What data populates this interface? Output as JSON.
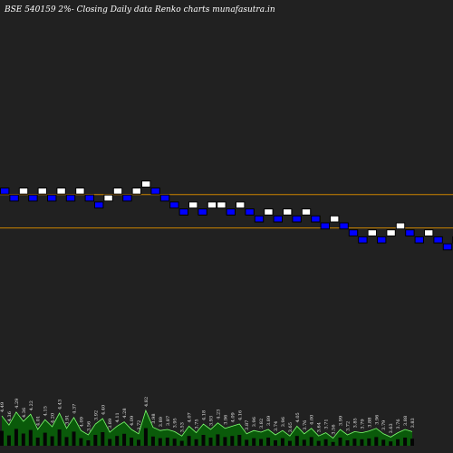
{
  "chart_data": {
    "type": "renko",
    "title": "BSE 540159 2%-  Closing Daily data Renko  charts munafasutra.in",
    "colors": {
      "background": "#212121",
      "up_brick": "#ffffff",
      "down_brick": "#0000ff",
      "brick_border": "#000000",
      "reference_line": "#cc8400",
      "volume_fill": "#0a5a0a",
      "volume_stroke": "#7cff6e"
    },
    "bricks": [
      {
        "dir": "down",
        "level": 0
      },
      {
        "dir": "down",
        "level": 1
      },
      {
        "dir": "up",
        "level": 0
      },
      {
        "dir": "down",
        "level": 1
      },
      {
        "dir": "up",
        "level": 0
      },
      {
        "dir": "down",
        "level": 1
      },
      {
        "dir": "up",
        "level": 0
      },
      {
        "dir": "down",
        "level": 1
      },
      {
        "dir": "up",
        "level": 0
      },
      {
        "dir": "down",
        "level": 1
      },
      {
        "dir": "down",
        "level": 2
      },
      {
        "dir": "up",
        "level": 1
      },
      {
        "dir": "up",
        "level": 0
      },
      {
        "dir": "down",
        "level": 1
      },
      {
        "dir": "up",
        "level": 0
      },
      {
        "dir": "up",
        "level": -1
      },
      {
        "dir": "down",
        "level": 0
      },
      {
        "dir": "down",
        "level": 1
      },
      {
        "dir": "down",
        "level": 2
      },
      {
        "dir": "down",
        "level": 3
      },
      {
        "dir": "up",
        "level": 2
      },
      {
        "dir": "down",
        "level": 3
      },
      {
        "dir": "up",
        "level": 2
      },
      {
        "dir": "up",
        "level": 2
      },
      {
        "dir": "down",
        "level": 3
      },
      {
        "dir": "up",
        "level": 2
      },
      {
        "dir": "down",
        "level": 3
      },
      {
        "dir": "down",
        "level": 4
      },
      {
        "dir": "up",
        "level": 3
      },
      {
        "dir": "down",
        "level": 4
      },
      {
        "dir": "up",
        "level": 3
      },
      {
        "dir": "down",
        "level": 4
      },
      {
        "dir": "up",
        "level": 3
      },
      {
        "dir": "down",
        "level": 4
      },
      {
        "dir": "down",
        "level": 5
      },
      {
        "dir": "up",
        "level": 4
      },
      {
        "dir": "down",
        "level": 5
      },
      {
        "dir": "down",
        "level": 6
      },
      {
        "dir": "down",
        "level": 7
      },
      {
        "dir": "up",
        "level": 6
      },
      {
        "dir": "down",
        "level": 7
      },
      {
        "dir": "up",
        "level": 6
      },
      {
        "dir": "up",
        "level": 5
      },
      {
        "dir": "down",
        "level": 6
      },
      {
        "dir": "down",
        "level": 7
      },
      {
        "dir": "up",
        "level": 6
      },
      {
        "dir": "down",
        "level": 7
      },
      {
        "dir": "down",
        "level": 8
      },
      {
        "dir": "up",
        "level": 7
      },
      {
        "dir": "down",
        "level": 8
      },
      {
        "dir": "up",
        "level": 7
      },
      {
        "dir": "down",
        "level": 8
      }
    ],
    "reference_lines": [
      {
        "level": 1.0
      },
      {
        "level": 5.8
      }
    ],
    "volume": [
      {
        "label": "4.49",
        "value": 0.55
      },
      {
        "label": "4.36",
        "value": 0.38
      },
      {
        "label": "4.29",
        "value": 0.62
      },
      {
        "label": "4.36",
        "value": 0.45
      },
      {
        "label": "4.22",
        "value": 0.58
      },
      {
        "label": "4.01",
        "value": 0.3
      },
      {
        "label": "4.15",
        "value": 0.48
      },
      {
        "label": "4.20",
        "value": 0.35
      },
      {
        "label": "4.43",
        "value": 0.6
      },
      {
        "label": "3.91",
        "value": 0.32
      },
      {
        "label": "4.37",
        "value": 0.52
      },
      {
        "label": "4.09",
        "value": 0.28
      },
      {
        "label": "3.56",
        "value": 0.2
      },
      {
        "label": "3.92",
        "value": 0.4
      },
      {
        "label": "4.40",
        "value": 0.5
      },
      {
        "label": "3.89",
        "value": 0.25
      },
      {
        "label": "4.11",
        "value": 0.36
      },
      {
        "label": "4.28",
        "value": 0.44
      },
      {
        "label": "4.09",
        "value": 0.3
      },
      {
        "label": "3.72",
        "value": 0.22
      },
      {
        "label": "4.82",
        "value": 0.65
      },
      {
        "label": "3.98",
        "value": 0.34
      },
      {
        "label": "3.89",
        "value": 0.28
      },
      {
        "label": "3.87",
        "value": 0.3
      },
      {
        "label": "3.95",
        "value": 0.26
      },
      {
        "label": "3.53",
        "value": 0.18
      },
      {
        "label": "4.07",
        "value": 0.36
      },
      {
        "label": "3.75",
        "value": 0.24
      },
      {
        "label": "4.18",
        "value": 0.4
      },
      {
        "label": "3.93",
        "value": 0.3
      },
      {
        "label": "4.23",
        "value": 0.42
      },
      {
        "label": "3.96",
        "value": 0.32
      },
      {
        "label": "4.09",
        "value": 0.36
      },
      {
        "label": "4.16",
        "value": 0.4
      },
      {
        "label": "3.87",
        "value": 0.22
      },
      {
        "label": "3.96",
        "value": 0.28
      },
      {
        "label": "3.82",
        "value": 0.25
      },
      {
        "label": "3.89",
        "value": 0.3
      },
      {
        "label": "3.74",
        "value": 0.2
      },
      {
        "label": "3.96",
        "value": 0.28
      },
      {
        "label": "3.65",
        "value": 0.18
      },
      {
        "label": "4.05",
        "value": 0.36
      },
      {
        "label": "3.76",
        "value": 0.22
      },
      {
        "label": "4.00",
        "value": 0.32
      },
      {
        "label": "3.64",
        "value": 0.18
      },
      {
        "label": "3.71",
        "value": 0.24
      },
      {
        "label": "3.56",
        "value": 0.14
      },
      {
        "label": "3.99",
        "value": 0.3
      },
      {
        "label": "3.72",
        "value": 0.2
      },
      {
        "label": "3.85",
        "value": 0.26
      },
      {
        "label": "3.79",
        "value": 0.24
      },
      {
        "label": "3.88",
        "value": 0.27
      },
      {
        "label": "3.96",
        "value": 0.32
      },
      {
        "label": "3.79",
        "value": 0.22
      },
      {
        "label": "3.63",
        "value": 0.16
      },
      {
        "label": "3.76",
        "value": 0.24
      },
      {
        "label": "3.88",
        "value": 0.3
      },
      {
        "label": "3.83",
        "value": 0.26
      }
    ]
  }
}
